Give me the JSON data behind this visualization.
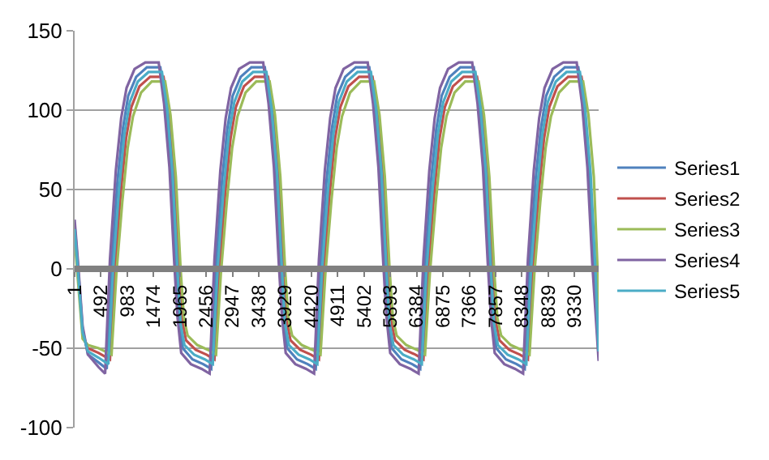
{
  "chart_data": {
    "type": "line",
    "legend": "right",
    "grid": "y",
    "marker": "none",
    "line_style": "solid",
    "xlim": [
      1,
      9780
    ],
    "xticks": [
      1,
      492,
      983,
      1474,
      1965,
      2456,
      2947,
      3438,
      3929,
      4420,
      4911,
      5402,
      5893,
      6384,
      6875,
      7366,
      7857,
      8348,
      8839,
      9330
    ],
    "ylim": [
      -100,
      150
    ],
    "yticks": [
      -100,
      -50,
      0,
      50,
      100,
      150
    ],
    "series": [
      {
        "name": "Series1",
        "color": "#4f81bd",
        "x": [
          1,
          60,
          150,
          250,
          450,
          600,
          690,
          800,
          900,
          1000,
          1150,
          1350,
          1600,
          1700,
          1800,
          1890,
          1950,
          2020,
          2200,
          2400,
          2550,
          2640,
          2750,
          2850,
          2950,
          3100,
          3300,
          3550,
          3650,
          3750,
          3840,
          3900,
          3970,
          4150,
          4350,
          4500,
          4590,
          4700,
          4800,
          4900,
          5050,
          5250,
          5500,
          5600,
          5700,
          5790,
          5850,
          5920,
          6100,
          6300,
          6450,
          6540,
          6650,
          6750,
          6850,
          7000,
          7200,
          7450,
          7550,
          7650,
          7740,
          7800,
          7870,
          8050,
          8250,
          8400,
          8490,
          8600,
          8700,
          8800,
          8950,
          9150,
          9400,
          9500,
          9600,
          9690,
          9780
        ],
        "values": [
          28,
          3,
          -38,
          -54,
          -59,
          -63,
          3,
          55,
          88,
          109,
          121,
          127,
          127,
          101,
          61,
          1,
          -33,
          -50,
          -57,
          -60,
          -63,
          3,
          55,
          88,
          109,
          121,
          127,
          127,
          101,
          61,
          1,
          -33,
          -50,
          -57,
          -60,
          -63,
          3,
          55,
          88,
          109,
          121,
          127,
          127,
          101,
          61,
          1,
          -33,
          -50,
          -57,
          -60,
          -63,
          3,
          55,
          88,
          109,
          121,
          127,
          127,
          101,
          61,
          1,
          -33,
          -50,
          -57,
          -60,
          -63,
          3,
          55,
          88,
          109,
          121,
          127,
          127,
          101,
          61,
          1,
          -55
        ]
      },
      {
        "name": "Series2",
        "color": "#c0504d",
        "x": [
          150,
          250,
          450,
          660,
          750,
          860,
          960,
          1060,
          1210,
          1410,
          1660,
          1760,
          1860,
          1950,
          2010,
          2080,
          2260,
          2460,
          2610,
          2700,
          2810,
          2910,
          3010,
          3160,
          3360,
          3610,
          3710,
          3810,
          3900,
          3960,
          4030,
          4210,
          4410,
          4560,
          4650,
          4760,
          4860,
          4960,
          5110,
          5310,
          5560,
          5660,
          5760,
          5850,
          5910,
          5980,
          6160,
          6360,
          6510,
          6600,
          6710,
          6810,
          6910,
          7060,
          7260,
          7510,
          7610,
          7710,
          7800,
          7860,
          7930,
          8110,
          8310,
          8460,
          8550,
          8660,
          8760,
          8860,
          9010,
          9210,
          9460,
          9560
        ],
        "values": [
          -42,
          -50,
          -53,
          -57,
          -1,
          47,
          82,
          102,
          115,
          121,
          121,
          99,
          59,
          0,
          -33,
          -45,
          -51,
          -54,
          -57,
          -1,
          47,
          82,
          102,
          115,
          121,
          121,
          99,
          59,
          0,
          -33,
          -45,
          -51,
          -54,
          -57,
          -1,
          47,
          82,
          102,
          115,
          121,
          121,
          99,
          59,
          0,
          -33,
          -45,
          -51,
          -54,
          -57,
          -1,
          47,
          82,
          102,
          115,
          121,
          121,
          99,
          59,
          0,
          -33,
          -45,
          -51,
          -54,
          -57,
          -1,
          47,
          82,
          102,
          115,
          121,
          121,
          99
        ]
      },
      {
        "name": "Series3",
        "color": "#9bbb59",
        "x": [
          1,
          60,
          150,
          250,
          450,
          690,
          780,
          890,
          990,
          1090,
          1240,
          1440,
          1690,
          1790,
          1890,
          1980,
          2040,
          2110,
          2290,
          2490,
          2640,
          2730,
          2840,
          2940,
          3040,
          3190,
          3390,
          3640,
          3740,
          3840,
          3930,
          3990,
          4060,
          4240,
          4440,
          4590,
          4680,
          4790,
          4890,
          4990,
          5140,
          5340,
          5590,
          5690,
          5790,
          5880,
          5940,
          6010,
          6190,
          6390,
          6540,
          6630,
          6740,
          6840,
          6940,
          7090,
          7290,
          7540,
          7640,
          7740,
          7830,
          7890,
          7960,
          8140,
          8340,
          8490,
          8580,
          8690,
          8790,
          8890,
          9040,
          9240,
          9490,
          9590,
          9690,
          9760,
          9780
        ],
        "values": [
          19,
          -6,
          -44,
          -48,
          -50,
          -54,
          -3,
          42,
          76,
          96,
          111,
          118,
          118,
          97,
          58,
          -1,
          -31,
          -42,
          -48,
          -51,
          -54,
          -3,
          42,
          76,
          96,
          111,
          118,
          118,
          97,
          58,
          -1,
          -31,
          -42,
          -48,
          -51,
          -54,
          -3,
          42,
          76,
          96,
          111,
          118,
          118,
          97,
          58,
          -1,
          -31,
          -42,
          -48,
          -51,
          -54,
          -3,
          42,
          76,
          96,
          111,
          118,
          118,
          97,
          58,
          -1,
          -31,
          -42,
          -48,
          -51,
          -54,
          -3,
          42,
          76,
          96,
          111,
          118,
          118,
          97,
          58,
          -1,
          -46
        ]
      },
      {
        "name": "Series4",
        "color": "#8064a2",
        "x": [
          1,
          60,
          150,
          250,
          450,
          570,
          660,
          770,
          870,
          970,
          1120,
          1320,
          1570,
          1670,
          1770,
          1860,
          1920,
          1990,
          2170,
          2370,
          2520,
          2610,
          2720,
          2820,
          2920,
          3070,
          3270,
          3520,
          3620,
          3720,
          3810,
          3870,
          3940,
          4120,
          4320,
          4470,
          4560,
          4670,
          4770,
          4870,
          5020,
          5220,
          5470,
          5570,
          5670,
          5760,
          5820,
          5890,
          6070,
          6270,
          6420,
          6510,
          6620,
          6720,
          6820,
          6970,
          7170,
          7420,
          7520,
          7620,
          7710,
          7770,
          7840,
          8020,
          8220,
          8370,
          8460,
          8570,
          8670,
          8770,
          8920,
          9120,
          9370,
          9470,
          9570,
          9660,
          9780
        ],
        "values": [
          31,
          6,
          -36,
          -54,
          -62,
          -66,
          6,
          62,
          95,
          114,
          126,
          130,
          130,
          104,
          64,
          4,
          -30,
          -53,
          -60,
          -63,
          -66,
          6,
          62,
          95,
          114,
          126,
          130,
          130,
          104,
          64,
          4,
          -30,
          -53,
          -60,
          -63,
          -66,
          6,
          62,
          95,
          114,
          126,
          130,
          130,
          104,
          64,
          4,
          -30,
          -53,
          -60,
          -63,
          -66,
          6,
          62,
          95,
          114,
          126,
          130,
          130,
          104,
          64,
          4,
          -30,
          -53,
          -60,
          -63,
          -66,
          6,
          62,
          95,
          114,
          126,
          130,
          130,
          104,
          64,
          4,
          -58
        ]
      },
      {
        "name": "Series5",
        "color": "#4bacc6",
        "x": [
          1,
          60,
          150,
          250,
          450,
          630,
          720,
          830,
          930,
          1030,
          1180,
          1380,
          1630,
          1730,
          1830,
          1920,
          1980,
          2050,
          2230,
          2430,
          2580,
          2670,
          2780,
          2880,
          2980,
          3130,
          3330,
          3580,
          3680,
          3780,
          3870,
          3930,
          4000,
          4180,
          4380,
          4530,
          4620,
          4730,
          4830,
          4930,
          5080,
          5280,
          5530,
          5630,
          5730,
          5820,
          5880,
          5950,
          6130,
          6330,
          6480,
          6570,
          6680,
          6780,
          6880,
          7030,
          7230,
          7480,
          7580,
          7680,
          7770,
          7830,
          7900,
          8080,
          8280,
          8430,
          8520,
          8630,
          8730,
          8830,
          8980,
          9180,
          9430,
          9530,
          9630,
          9720,
          9780
        ],
        "values": [
          25,
          0,
          -40,
          -52,
          -56,
          -60,
          0,
          50,
          85,
          105,
          118,
          124,
          124,
          100,
          60,
          0,
          -35,
          -48,
          -54,
          -57,
          -60,
          0,
          50,
          85,
          105,
          118,
          124,
          124,
          100,
          60,
          0,
          -35,
          -48,
          -54,
          -57,
          -60,
          0,
          50,
          85,
          105,
          118,
          124,
          124,
          100,
          60,
          0,
          -35,
          -48,
          -54,
          -57,
          -60,
          0,
          50,
          85,
          105,
          118,
          124,
          124,
          100,
          60,
          0,
          -35,
          -48,
          -54,
          -57,
          -60,
          0,
          50,
          85,
          105,
          118,
          124,
          124,
          100,
          60,
          0,
          -52
        ]
      }
    ]
  }
}
